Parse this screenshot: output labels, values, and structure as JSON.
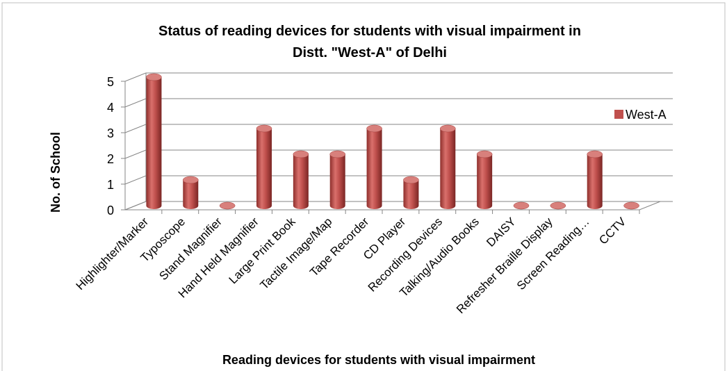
{
  "chart_data": {
    "type": "bar",
    "title_lines": [
      "Status of reading devices for students with visual impairment in",
      "Distt. \"West-A\" of Delhi"
    ],
    "x_label": "Reading devices for students with visual impairment",
    "y_label": "No. of School",
    "categories": [
      "Highlighter/Marker",
      "Typoscope",
      "Stand Magnifier",
      "Hand Held Magnifier",
      "Large Print Book",
      "Tactile Image/Map",
      "Tape Recorder",
      "CD Player",
      "Recording Devices",
      "Talking/Audio Books",
      "DAISY",
      "Refresher Braille Display",
      "Screen Reading…",
      "CCTV"
    ],
    "series": [
      {
        "name": "West-A",
        "color": "#c0504d",
        "values": [
          5,
          1,
          0,
          3,
          2,
          2,
          3,
          1,
          3,
          2,
          0,
          0,
          2,
          0
        ]
      }
    ],
    "ylim": [
      0,
      5
    ],
    "yticks": [
      0,
      1,
      2,
      3,
      4,
      5
    ],
    "grid": true,
    "legend": "right"
  }
}
